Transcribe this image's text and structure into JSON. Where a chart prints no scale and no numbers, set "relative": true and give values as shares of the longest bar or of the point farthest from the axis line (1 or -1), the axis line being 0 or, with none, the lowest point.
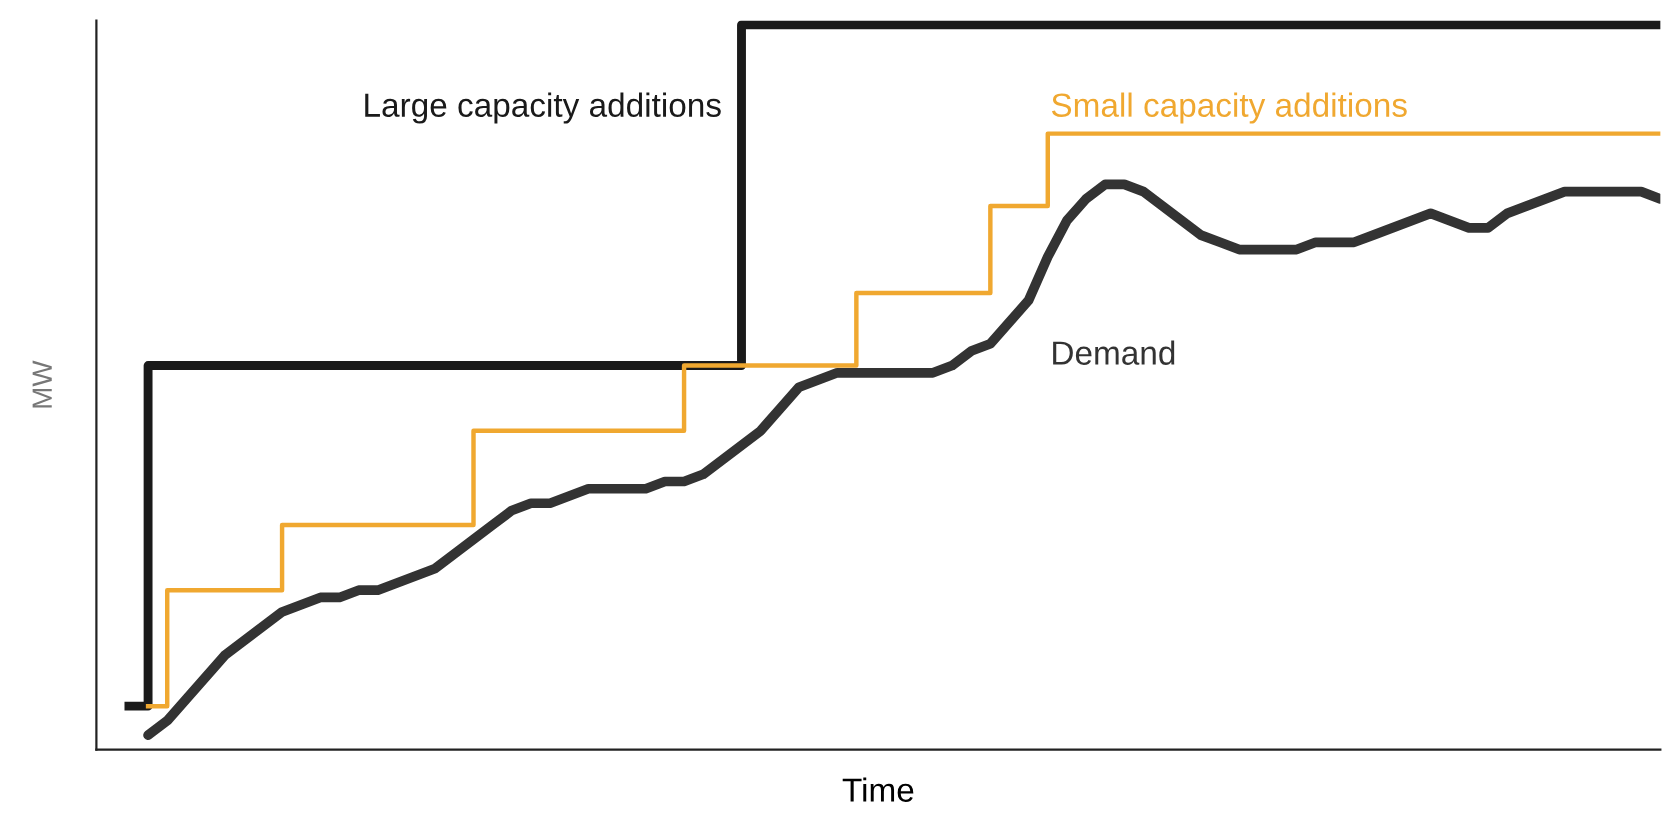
{
  "chart_data": {
    "type": "line",
    "relative": true,
    "xlabel": "Time",
    "ylabel": "MW",
    "legend": false,
    "grid": false,
    "tick_labels": false,
    "categories": [
      null,
      null,
      null,
      null,
      null,
      null,
      null,
      null,
      null,
      null,
      null,
      null,
      null,
      null,
      null,
      null,
      null,
      null,
      null,
      null,
      null,
      null,
      null,
      null,
      null,
      null,
      null,
      null,
      null,
      null,
      null,
      null,
      null,
      null,
      null,
      null,
      null,
      null,
      null,
      null,
      null,
      null,
      null,
      null,
      null,
      null,
      null,
      null,
      null,
      null,
      null,
      null,
      null,
      null,
      null,
      null,
      null,
      null,
      null,
      null,
      null,
      null,
      null,
      null,
      null,
      null,
      null,
      null,
      null,
      null,
      null,
      null,
      null,
      null,
      null,
      null,
      null,
      null,
      null,
      null,
      null
    ],
    "series": [
      {
        "name": "Large capacity additions",
        "type": "step",
        "color": "#1a1a1a",
        "values": [
          0.06,
          0.53,
          0.53,
          0.53,
          0.53,
          0.53,
          0.53,
          0.53,
          0.53,
          0.53,
          0.53,
          0.53,
          0.53,
          0.53,
          0.53,
          0.53,
          0.53,
          0.53,
          0.53,
          0.53,
          0.53,
          0.53,
          0.53,
          0.53,
          0.53,
          0.53,
          0.53,
          0.53,
          0.53,
          0.53,
          0.53,
          0.53,
          1.0,
          1.0,
          1.0,
          1.0,
          1.0,
          1.0,
          1.0,
          1.0,
          1.0,
          1.0,
          1.0,
          1.0,
          1.0,
          1.0,
          1.0,
          1.0,
          1.0,
          1.0,
          1.0,
          1.0,
          1.0,
          1.0,
          1.0,
          1.0,
          1.0,
          1.0,
          1.0,
          1.0,
          1.0,
          1.0,
          1.0,
          1.0,
          1.0,
          1.0,
          1.0,
          1.0,
          1.0,
          1.0,
          1.0,
          1.0,
          1.0,
          1.0,
          1.0,
          1.0,
          1.0,
          1.0,
          1.0,
          1.0,
          1.0
        ]
      },
      {
        "name": "Small capacity additions",
        "type": "step",
        "color": "#f0a830",
        "values": [
          null,
          0.06,
          0.22,
          0.22,
          0.22,
          0.22,
          0.22,
          0.22,
          0.31,
          0.31,
          0.31,
          0.31,
          0.31,
          0.31,
          0.31,
          0.31,
          0.31,
          0.31,
          0.44,
          0.44,
          0.44,
          0.44,
          0.44,
          0.44,
          0.44,
          0.44,
          0.44,
          0.44,
          0.44,
          0.53,
          0.53,
          0.53,
          0.53,
          0.53,
          0.53,
          0.53,
          0.53,
          0.53,
          0.63,
          0.63,
          0.63,
          0.63,
          0.63,
          0.63,
          0.63,
          0.75,
          0.75,
          0.75,
          0.85,
          0.85,
          0.85,
          0.85,
          0.85,
          0.85,
          0.85,
          0.85,
          0.85,
          0.85,
          0.85,
          0.85,
          0.85,
          0.85,
          0.85,
          0.85,
          0.85,
          0.85,
          0.85,
          0.85,
          0.85,
          0.85,
          0.85,
          0.85,
          0.85,
          0.85,
          0.85,
          0.85,
          0.85,
          0.85,
          0.85,
          0.85,
          0.85
        ]
      },
      {
        "name": "Demand",
        "color": "#333333",
        "values": [
          null,
          0.02,
          0.04,
          0.07,
          0.1,
          0.13,
          0.15,
          0.17,
          0.19,
          0.2,
          0.21,
          0.21,
          0.22,
          0.22,
          0.23,
          0.24,
          0.25,
          0.27,
          0.29,
          0.31,
          0.33,
          0.34,
          0.34,
          0.35,
          0.36,
          0.36,
          0.36,
          0.36,
          0.37,
          0.37,
          0.38,
          0.4,
          0.42,
          0.44,
          0.47,
          0.5,
          0.51,
          0.52,
          0.52,
          0.52,
          0.52,
          0.52,
          0.52,
          0.53,
          0.55,
          0.56,
          0.59,
          0.62,
          0.68,
          0.73,
          0.76,
          0.78,
          0.78,
          0.77,
          0.75,
          0.73,
          0.71,
          0.7,
          0.69,
          0.69,
          0.69,
          0.69,
          0.7,
          0.7,
          0.7,
          0.71,
          0.72,
          0.73,
          0.74,
          0.73,
          0.72,
          0.72,
          0.74,
          0.75,
          0.76,
          0.77,
          0.77,
          0.77,
          0.77,
          0.77,
          0.76
        ]
      }
    ]
  }
}
